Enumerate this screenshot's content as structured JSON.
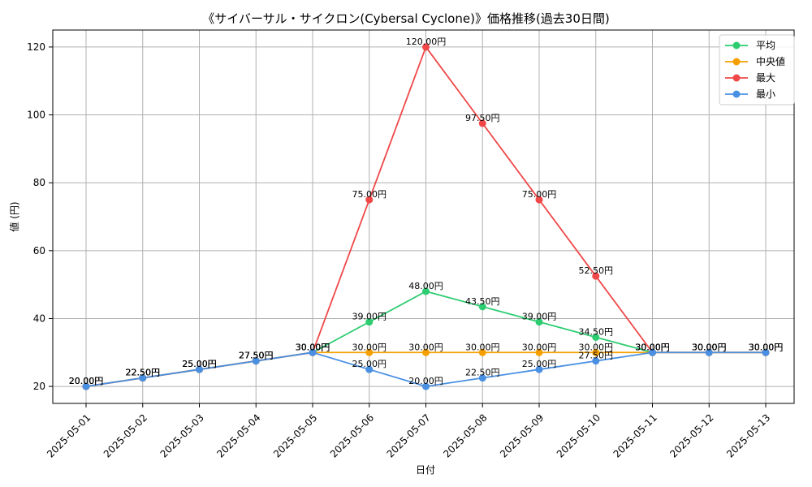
{
  "chart_data": {
    "type": "line",
    "title": "《サイバーサル・サイクロン(Cybersal Cyclone)》価格推移(過去30日間)",
    "xlabel": "日付",
    "ylabel": "値 (円)",
    "ylim": [
      15,
      125
    ],
    "yticks": [
      20,
      40,
      60,
      80,
      100,
      120
    ],
    "grid": true,
    "legend_position": "top-right",
    "label_suffix": "円",
    "categories": [
      "2025-05-01",
      "2025-05-02",
      "2025-05-03",
      "2025-05-04",
      "2025-05-05",
      "2025-05-06",
      "2025-05-07",
      "2025-05-08",
      "2025-05-09",
      "2025-05-10",
      "2025-05-11",
      "2025-05-12",
      "2025-05-13"
    ],
    "series": [
      {
        "name": "平均",
        "color": "#2ecc71",
        "values": [
          20.0,
          22.5,
          25.0,
          27.5,
          30.0,
          39.0,
          48.0,
          43.5,
          39.0,
          34.5,
          30.0,
          30.0,
          30.0
        ]
      },
      {
        "name": "中央値",
        "color": "#f5a000",
        "values": [
          20.0,
          22.5,
          25.0,
          27.5,
          30.0,
          30.0,
          30.0,
          30.0,
          30.0,
          30.0,
          30.0,
          30.0,
          30.0
        ]
      },
      {
        "name": "最大",
        "color": "#f04848",
        "values": [
          20.0,
          22.5,
          25.0,
          27.5,
          30.0,
          75.0,
          120.0,
          97.5,
          75.0,
          52.5,
          30.0,
          30.0,
          30.0
        ]
      },
      {
        "name": "最小",
        "color": "#4a90e2",
        "values": [
          20.0,
          22.5,
          25.0,
          27.5,
          30.0,
          25.0,
          20.0,
          22.5,
          25.0,
          27.5,
          30.0,
          30.0,
          30.0
        ]
      }
    ]
  }
}
